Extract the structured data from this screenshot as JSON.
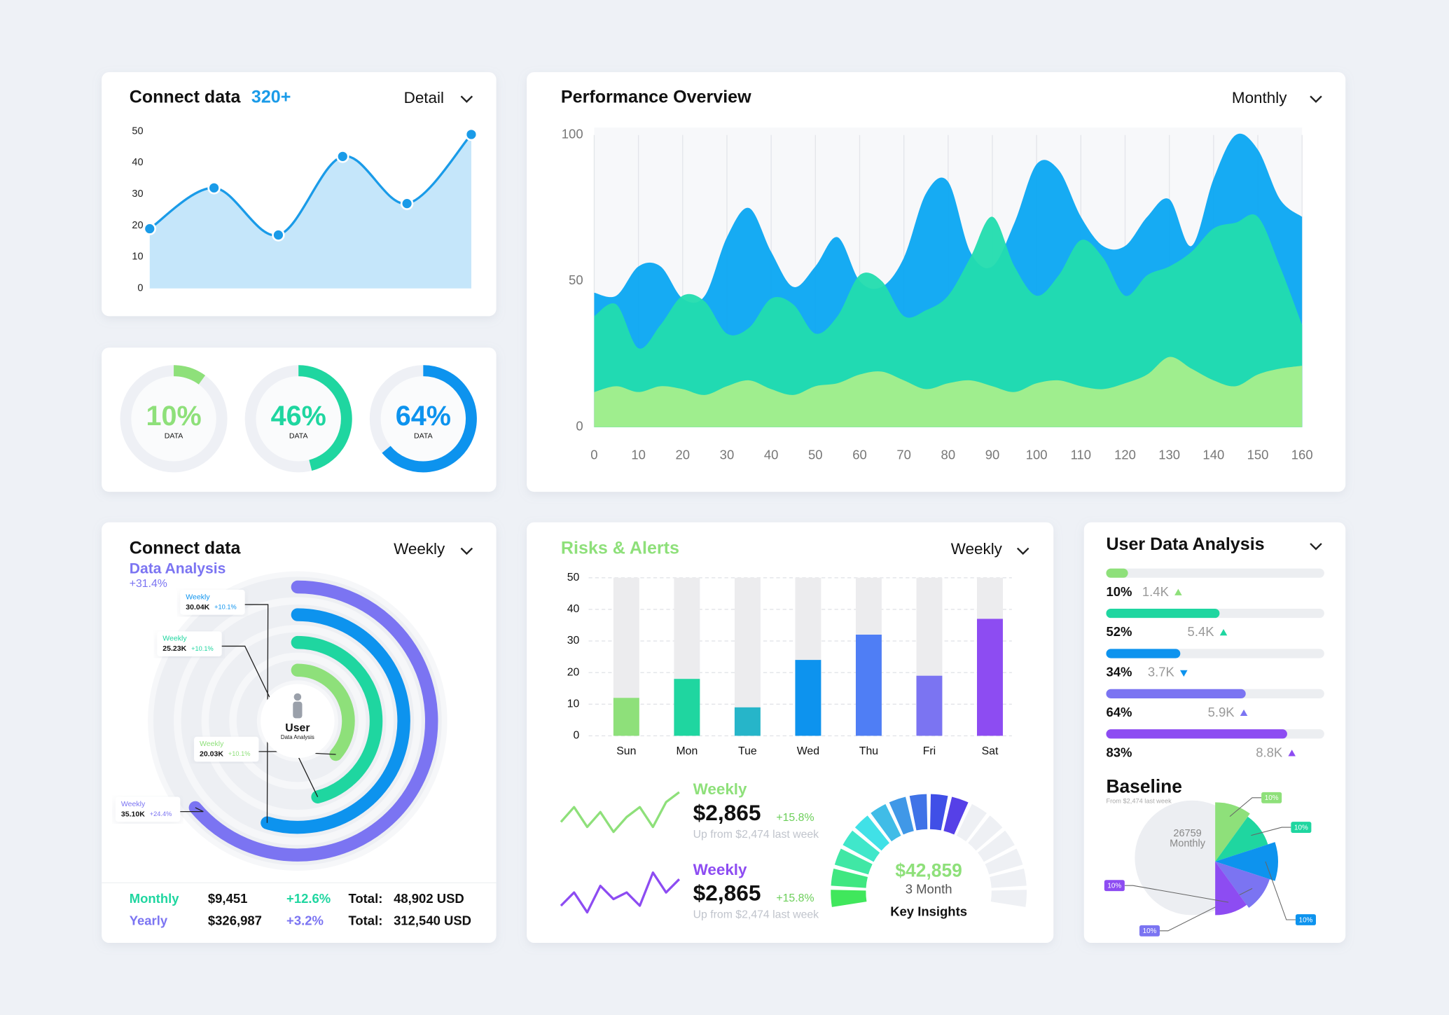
{
  "chart_data": [
    {
      "type": "area",
      "title": "Connect data",
      "badge": "320+",
      "menu": "Detail",
      "categories": [
        null,
        null,
        null,
        null,
        null,
        null
      ],
      "values": [
        19,
        32,
        17,
        42,
        27,
        49
      ],
      "ylim": [
        0,
        50
      ],
      "yticks": [
        0,
        10,
        20,
        30,
        40,
        50
      ],
      "color": "#1a9be8",
      "fill": "#c5e6fa"
    },
    {
      "type": "donut",
      "values": [
        10,
        46,
        64
      ],
      "value_labels": [
        "10%",
        "46%",
        "64%"
      ],
      "labels": [
        "DATA",
        "DATA",
        "DATA"
      ],
      "colors": [
        "#8ee07a",
        "#1fd6a0",
        "#0d93ee"
      ],
      "ylim": [
        0,
        100
      ]
    },
    {
      "type": "overlap-area",
      "title": "Performance Overview",
      "menu": "Monthly",
      "x": [
        0,
        5,
        10,
        15,
        20,
        25,
        30,
        35,
        40,
        45,
        50,
        55,
        60,
        65,
        70,
        75,
        80,
        85,
        90,
        95,
        100,
        105,
        110,
        115,
        120,
        125,
        130,
        135,
        140,
        145,
        150,
        155,
        160
      ],
      "xlim": [
        0,
        160
      ],
      "xticks": [
        0,
        10,
        20,
        30,
        40,
        50,
        60,
        70,
        80,
        90,
        100,
        110,
        120,
        130,
        140,
        150,
        160
      ],
      "ylim": [
        0,
        100
      ],
      "yticks": [
        0,
        50,
        100
      ],
      "grid": true,
      "series": [
        {
          "color": "#0aa6f2",
          "values": [
            46,
            45,
            55,
            55,
            44,
            45,
            65,
            75,
            60,
            48,
            55,
            65,
            50,
            48,
            58,
            80,
            84,
            60,
            55,
            70,
            90,
            88,
            72,
            62,
            62,
            72,
            78,
            62,
            85,
            100,
            95,
            78,
            72
          ]
        },
        {
          "color": "#22dcae",
          "values": [
            38,
            42,
            27,
            35,
            45,
            43,
            32,
            34,
            44,
            42,
            32,
            38,
            52,
            50,
            38,
            40,
            45,
            58,
            72,
            55,
            45,
            52,
            64,
            58,
            45,
            52,
            55,
            60,
            68,
            70,
            72,
            55,
            35
          ]
        },
        {
          "color": "#a6ef8c",
          "values": [
            12,
            14,
            12,
            14,
            13,
            11,
            14,
            16,
            13,
            11,
            14,
            15,
            18,
            19,
            16,
            13,
            15,
            16,
            14,
            12,
            15,
            16,
            14,
            13,
            15,
            18,
            24,
            20,
            16,
            14,
            18,
            20,
            21
          ]
        }
      ]
    },
    {
      "type": "radial",
      "title": "Connect data",
      "subtitle": "Data Analysis",
      "change": "+31.4%",
      "menu": "Weekly",
      "center_label": "User",
      "center_sublabel": "Data Analysis",
      "ylim": [
        0,
        55000
      ],
      "categories": [
        "Weekly",
        "Weekly",
        "Weekly",
        "Weekly"
      ],
      "values": [
        35100,
        30040,
        25230,
        20030
      ],
      "value_labels": [
        "35.10K",
        "30.04K",
        "25.23K",
        "20.03K"
      ],
      "changes": [
        "+24.4%",
        "+10.1%",
        "+10.1%",
        "+10.1%"
      ],
      "colors": [
        "#7b74f2",
        "#0d93ee",
        "#1fd6a0",
        "#8ee07a"
      ],
      "summary": [
        [
          "Monthly",
          "$9,451",
          "+12.6%",
          "Total:",
          "48,902 USD"
        ],
        [
          "Yearly",
          "$326,987",
          "+3.2%",
          "Total:",
          "312,540 USD"
        ]
      ]
    },
    {
      "type": "bar",
      "title": "Risks & Alerts",
      "menu": "Weekly",
      "categories": [
        "Sun",
        "Mon",
        "Tue",
        "Wed",
        "Thu",
        "Fri",
        "Sat"
      ],
      "values": [
        12,
        18,
        9,
        24,
        32,
        19,
        37
      ],
      "colors": [
        "#8ee07a",
        "#1fd6a0",
        "#26b5c9",
        "#0d93ee",
        "#4f7ef5",
        "#7b74f2",
        "#8d4cf2"
      ],
      "ylim": [
        0,
        50
      ],
      "yticks": [
        0,
        10,
        20,
        30,
        40,
        50
      ],
      "grid": true
    },
    {
      "type": "line",
      "name": "Weekly",
      "value_label": "$2,865",
      "change": "+15.8%",
      "note": "Up from $2,474 last week",
      "color": "#8ee07a",
      "values": [
        4,
        7,
        3,
        6,
        2,
        5,
        7,
        3,
        8,
        10
      ]
    },
    {
      "type": "line",
      "name": "Weekly",
      "value_label": "$2,865",
      "change": "+15.8%",
      "note": "Up from $2,474 last week",
      "color": "#8d4cf2",
      "values": [
        3,
        5,
        2,
        6,
        4,
        5,
        3,
        8,
        5,
        7
      ]
    },
    {
      "type": "gauge",
      "value": 62,
      "ylim": [
        0,
        100
      ],
      "label": "$42,859",
      "sublabel": "3 Month",
      "caption": "Key Insights"
    },
    {
      "type": "progress",
      "title": "User Data Analysis",
      "values": [
        10,
        52,
        34,
        64,
        83
      ],
      "value_labels": [
        "10%",
        "52%",
        "34%",
        "64%",
        "83%"
      ],
      "details": [
        "1.4K",
        "5.4K",
        "3.7K",
        "5.9K",
        "8.8K"
      ],
      "trends": [
        "up",
        "up",
        "down",
        "up",
        "up"
      ],
      "colors": [
        "#8ee07a",
        "#1fd6a0",
        "#0d93ee",
        "#7b74f2",
        "#8d4cf2"
      ],
      "ylim": [
        0,
        100
      ]
    },
    {
      "type": "pie",
      "title": "Baseline",
      "subtitle": "From $2,474 last week",
      "center_value": "26759",
      "center_label": "Monthly",
      "values": [
        10,
        10,
        10,
        10,
        10
      ],
      "value_labels": [
        "10%",
        "10%",
        "10%",
        "10%",
        "10%"
      ],
      "colors": [
        "#8ee07a",
        "#1fd6a0",
        "#0d93ee",
        "#7b74f2",
        "#8d4cf2"
      ]
    }
  ]
}
